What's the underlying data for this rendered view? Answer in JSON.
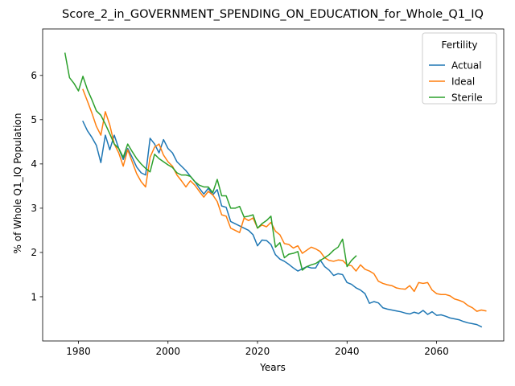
{
  "chart_data": {
    "type": "line",
    "title": "Score_2_in_GOVERNMENT_SPENDING_ON_EDUCATION_for_Whole_Q1_IQ",
    "xlabel": "Years",
    "ylabel": "% of Whole Q1_IQ Population",
    "xlim": [
      1972,
      2075
    ],
    "ylim": [
      0,
      7.05
    ],
    "xticks": [
      1980,
      2000,
      2020,
      2040,
      2060
    ],
    "yticks": [
      1,
      2,
      3,
      4,
      5,
      6
    ],
    "grid": false,
    "legend": {
      "title": "Fertility",
      "position": "top-right"
    },
    "series": [
      {
        "name": "Actual",
        "color": "#1f77b4",
        "points": [
          [
            1981,
            4.96
          ],
          [
            1982,
            4.75
          ],
          [
            1983,
            4.6
          ],
          [
            1984,
            4.42
          ],
          [
            1985,
            4.03
          ],
          [
            1986,
            4.65
          ],
          [
            1987,
            4.32
          ],
          [
            1988,
            4.65
          ],
          [
            1989,
            4.35
          ],
          [
            1990,
            4.1
          ],
          [
            1991,
            4.35
          ],
          [
            1992,
            4.15
          ],
          [
            1993,
            3.93
          ],
          [
            1994,
            3.8
          ],
          [
            1995,
            3.75
          ],
          [
            1996,
            4.58
          ],
          [
            1997,
            4.45
          ],
          [
            1998,
            4.25
          ],
          [
            1999,
            4.55
          ],
          [
            2000,
            4.35
          ],
          [
            2001,
            4.25
          ],
          [
            2002,
            4.05
          ],
          [
            2003,
            3.95
          ],
          [
            2004,
            3.85
          ],
          [
            2005,
            3.72
          ],
          [
            2006,
            3.6
          ],
          [
            2007,
            3.45
          ],
          [
            2008,
            3.32
          ],
          [
            2009,
            3.45
          ],
          [
            2010,
            3.3
          ],
          [
            2011,
            3.42
          ],
          [
            2012,
            3.05
          ],
          [
            2013,
            3.02
          ],
          [
            2014,
            2.7
          ],
          [
            2015,
            2.65
          ],
          [
            2016,
            2.6
          ],
          [
            2017,
            2.55
          ],
          [
            2018,
            2.5
          ],
          [
            2019,
            2.4
          ],
          [
            2020,
            2.15
          ],
          [
            2021,
            2.28
          ],
          [
            2022,
            2.27
          ],
          [
            2023,
            2.18
          ],
          [
            2024,
            1.95
          ],
          [
            2025,
            1.85
          ],
          [
            2026,
            1.8
          ],
          [
            2027,
            1.73
          ],
          [
            2028,
            1.65
          ],
          [
            2029,
            1.58
          ],
          [
            2030,
            1.63
          ],
          [
            2031,
            1.68
          ],
          [
            2032,
            1.65
          ],
          [
            2033,
            1.65
          ],
          [
            2034,
            1.83
          ],
          [
            2035,
            1.68
          ],
          [
            2036,
            1.6
          ],
          [
            2037,
            1.48
          ],
          [
            2038,
            1.52
          ],
          [
            2039,
            1.5
          ],
          [
            2040,
            1.32
          ],
          [
            2041,
            1.28
          ],
          [
            2042,
            1.2
          ],
          [
            2043,
            1.15
          ],
          [
            2044,
            1.07
          ],
          [
            2045,
            0.85
          ],
          [
            2046,
            0.89
          ],
          [
            2047,
            0.86
          ],
          [
            2048,
            0.75
          ],
          [
            2049,
            0.72
          ],
          [
            2050,
            0.7
          ],
          [
            2051,
            0.68
          ],
          [
            2052,
            0.66
          ],
          [
            2053,
            0.63
          ],
          [
            2054,
            0.61
          ],
          [
            2055,
            0.65
          ],
          [
            2056,
            0.62
          ],
          [
            2057,
            0.69
          ],
          [
            2058,
            0.6
          ],
          [
            2059,
            0.66
          ],
          [
            2060,
            0.58
          ],
          [
            2061,
            0.59
          ],
          [
            2062,
            0.56
          ],
          [
            2063,
            0.52
          ],
          [
            2064,
            0.5
          ],
          [
            2065,
            0.48
          ],
          [
            2066,
            0.44
          ],
          [
            2067,
            0.41
          ],
          [
            2068,
            0.39
          ],
          [
            2069,
            0.37
          ],
          [
            2070,
            0.32
          ]
        ]
      },
      {
        "name": "Ideal",
        "color": "#ff7f0e",
        "points": [
          [
            1981,
            5.68
          ],
          [
            1982,
            5.42
          ],
          [
            1983,
            5.15
          ],
          [
            1984,
            4.85
          ],
          [
            1985,
            4.65
          ],
          [
            1986,
            5.18
          ],
          [
            1987,
            4.88
          ],
          [
            1988,
            4.45
          ],
          [
            1989,
            4.25
          ],
          [
            1990,
            3.95
          ],
          [
            1991,
            4.32
          ],
          [
            1992,
            4.05
          ],
          [
            1993,
            3.78
          ],
          [
            1994,
            3.6
          ],
          [
            1995,
            3.48
          ],
          [
            1996,
            4.15
          ],
          [
            1997,
            4.38
          ],
          [
            1998,
            4.45
          ],
          [
            1999,
            4.2
          ],
          [
            2000,
            4.05
          ],
          [
            2001,
            3.95
          ],
          [
            2002,
            3.75
          ],
          [
            2003,
            3.62
          ],
          [
            2004,
            3.48
          ],
          [
            2005,
            3.62
          ],
          [
            2006,
            3.52
          ],
          [
            2007,
            3.38
          ],
          [
            2008,
            3.25
          ],
          [
            2009,
            3.38
          ],
          [
            2010,
            3.3
          ],
          [
            2011,
            3.15
          ],
          [
            2012,
            2.85
          ],
          [
            2013,
            2.82
          ],
          [
            2014,
            2.55
          ],
          [
            2015,
            2.5
          ],
          [
            2016,
            2.45
          ],
          [
            2017,
            2.78
          ],
          [
            2018,
            2.72
          ],
          [
            2019,
            2.78
          ],
          [
            2020,
            2.55
          ],
          [
            2021,
            2.62
          ],
          [
            2022,
            2.58
          ],
          [
            2023,
            2.68
          ],
          [
            2024,
            2.48
          ],
          [
            2025,
            2.4
          ],
          [
            2026,
            2.2
          ],
          [
            2027,
            2.18
          ],
          [
            2028,
            2.1
          ],
          [
            2029,
            2.15
          ],
          [
            2030,
            1.98
          ],
          [
            2031,
            2.05
          ],
          [
            2032,
            2.12
          ],
          [
            2033,
            2.08
          ],
          [
            2034,
            2.02
          ],
          [
            2035,
            1.88
          ],
          [
            2036,
            1.82
          ],
          [
            2037,
            1.8
          ],
          [
            2038,
            1.83
          ],
          [
            2039,
            1.82
          ],
          [
            2040,
            1.72
          ],
          [
            2041,
            1.7
          ],
          [
            2042,
            1.58
          ],
          [
            2043,
            1.72
          ],
          [
            2044,
            1.62
          ],
          [
            2045,
            1.58
          ],
          [
            2046,
            1.52
          ],
          [
            2047,
            1.35
          ],
          [
            2048,
            1.3
          ],
          [
            2049,
            1.27
          ],
          [
            2050,
            1.25
          ],
          [
            2051,
            1.2
          ],
          [
            2052,
            1.18
          ],
          [
            2053,
            1.17
          ],
          [
            2054,
            1.25
          ],
          [
            2055,
            1.12
          ],
          [
            2056,
            1.32
          ],
          [
            2057,
            1.3
          ],
          [
            2058,
            1.32
          ],
          [
            2059,
            1.15
          ],
          [
            2060,
            1.07
          ],
          [
            2061,
            1.05
          ],
          [
            2062,
            1.05
          ],
          [
            2063,
            1.02
          ],
          [
            2064,
            0.95
          ],
          [
            2065,
            0.92
          ],
          [
            2066,
            0.88
          ],
          [
            2067,
            0.8
          ],
          [
            2068,
            0.75
          ],
          [
            2069,
            0.67
          ],
          [
            2070,
            0.7
          ],
          [
            2071,
            0.68
          ]
        ]
      },
      {
        "name": "Sterile",
        "color": "#2ca02c",
        "points": [
          [
            1977,
            6.5
          ],
          [
            1978,
            5.95
          ],
          [
            1979,
            5.82
          ],
          [
            1980,
            5.65
          ],
          [
            1981,
            5.98
          ],
          [
            1982,
            5.68
          ],
          [
            1983,
            5.45
          ],
          [
            1984,
            5.2
          ],
          [
            1985,
            5.1
          ],
          [
            1986,
            4.9
          ],
          [
            1987,
            4.68
          ],
          [
            1988,
            4.45
          ],
          [
            1989,
            4.35
          ],
          [
            1990,
            4.15
          ],
          [
            1991,
            4.45
          ],
          [
            1992,
            4.28
          ],
          [
            1993,
            4.12
          ],
          [
            1994,
            4.0
          ],
          [
            1995,
            3.9
          ],
          [
            1996,
            3.82
          ],
          [
            1997,
            4.22
          ],
          [
            1998,
            4.12
          ],
          [
            1999,
            4.05
          ],
          [
            2000,
            3.98
          ],
          [
            2001,
            3.92
          ],
          [
            2002,
            3.8
          ],
          [
            2003,
            3.75
          ],
          [
            2004,
            3.75
          ],
          [
            2005,
            3.72
          ],
          [
            2006,
            3.6
          ],
          [
            2007,
            3.52
          ],
          [
            2008,
            3.48
          ],
          [
            2009,
            3.48
          ],
          [
            2010,
            3.35
          ],
          [
            2011,
            3.65
          ],
          [
            2012,
            3.28
          ],
          [
            2013,
            3.28
          ],
          [
            2014,
            3.0
          ],
          [
            2015,
            3.0
          ],
          [
            2016,
            3.04
          ],
          [
            2017,
            2.8
          ],
          [
            2018,
            2.82
          ],
          [
            2019,
            2.85
          ],
          [
            2020,
            2.55
          ],
          [
            2021,
            2.65
          ],
          [
            2022,
            2.72
          ],
          [
            2023,
            2.82
          ],
          [
            2024,
            2.12
          ],
          [
            2025,
            2.22
          ],
          [
            2026,
            1.88
          ],
          [
            2027,
            1.96
          ],
          [
            2028,
            1.98
          ],
          [
            2029,
            2.02
          ],
          [
            2030,
            1.6
          ],
          [
            2031,
            1.68
          ],
          [
            2032,
            1.72
          ],
          [
            2033,
            1.75
          ],
          [
            2034,
            1.82
          ],
          [
            2035,
            1.88
          ],
          [
            2036,
            1.95
          ],
          [
            2037,
            2.05
          ],
          [
            2038,
            2.12
          ],
          [
            2039,
            2.3
          ],
          [
            2040,
            1.68
          ],
          [
            2041,
            1.82
          ],
          [
            2042,
            1.92
          ]
        ]
      }
    ]
  }
}
